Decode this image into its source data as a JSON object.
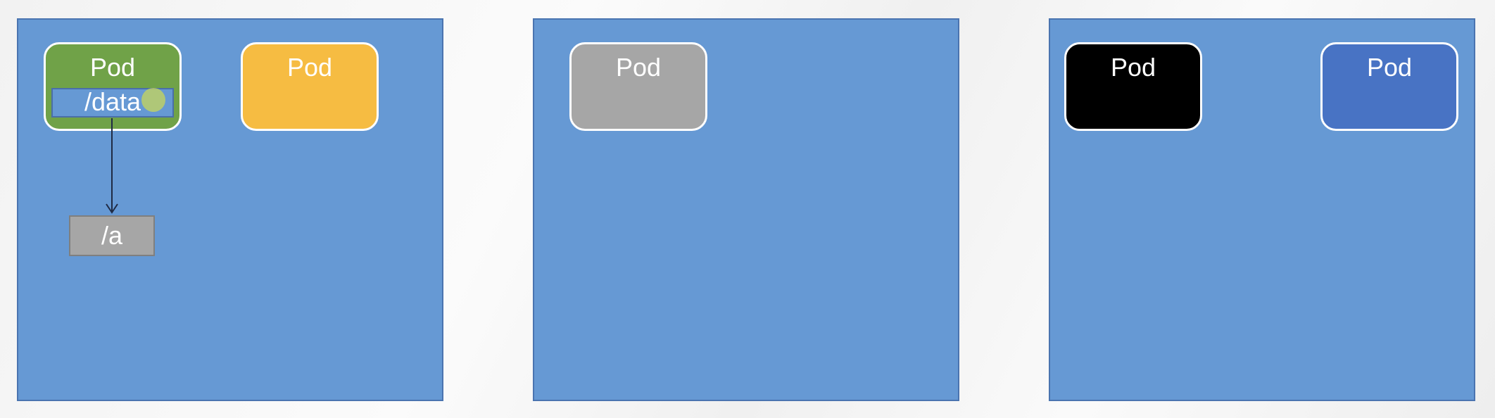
{
  "nodes": [
    {
      "pods": [
        {
          "label": "Pod",
          "color": "#70a248",
          "volume": "/data"
        },
        {
          "label": "Pod",
          "color": "#f6bc42"
        }
      ],
      "host_path": "/a"
    },
    {
      "pods": [
        {
          "label": "Pod",
          "color": "#a6a6a6"
        }
      ]
    },
    {
      "pods": [
        {
          "label": "Pod",
          "color": "#000000"
        },
        {
          "label": "Pod",
          "color": "#4873c4"
        }
      ]
    }
  ],
  "colors": {
    "node_fill": "#6699d4",
    "node_border": "#4a74b0",
    "pod_border": "#ffffff",
    "host_path_fill": "#a6a6a6"
  }
}
